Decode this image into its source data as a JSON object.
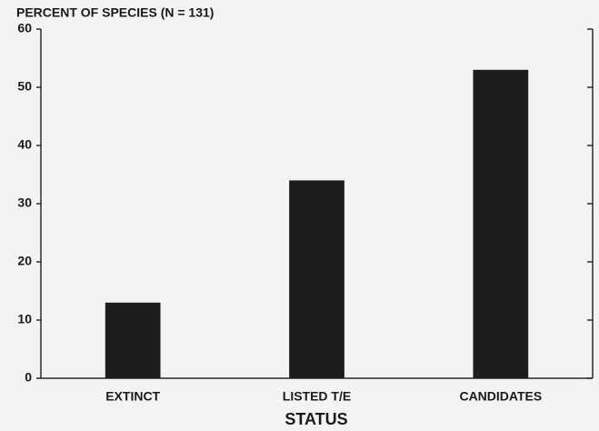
{
  "chart_data": {
    "type": "bar",
    "title": "PERCENT OF SPECIES (N = 131)",
    "x_label": "STATUS",
    "categories": [
      "EXTINCT",
      "LISTED T/E",
      "CANDIDATES"
    ],
    "values": [
      13,
      34,
      53
    ],
    "color": "#1c1c1c",
    "ylim": [
      0,
      60
    ],
    "yticks": [
      0,
      10,
      20,
      30,
      40,
      50,
      60
    ],
    "grid": false
  }
}
